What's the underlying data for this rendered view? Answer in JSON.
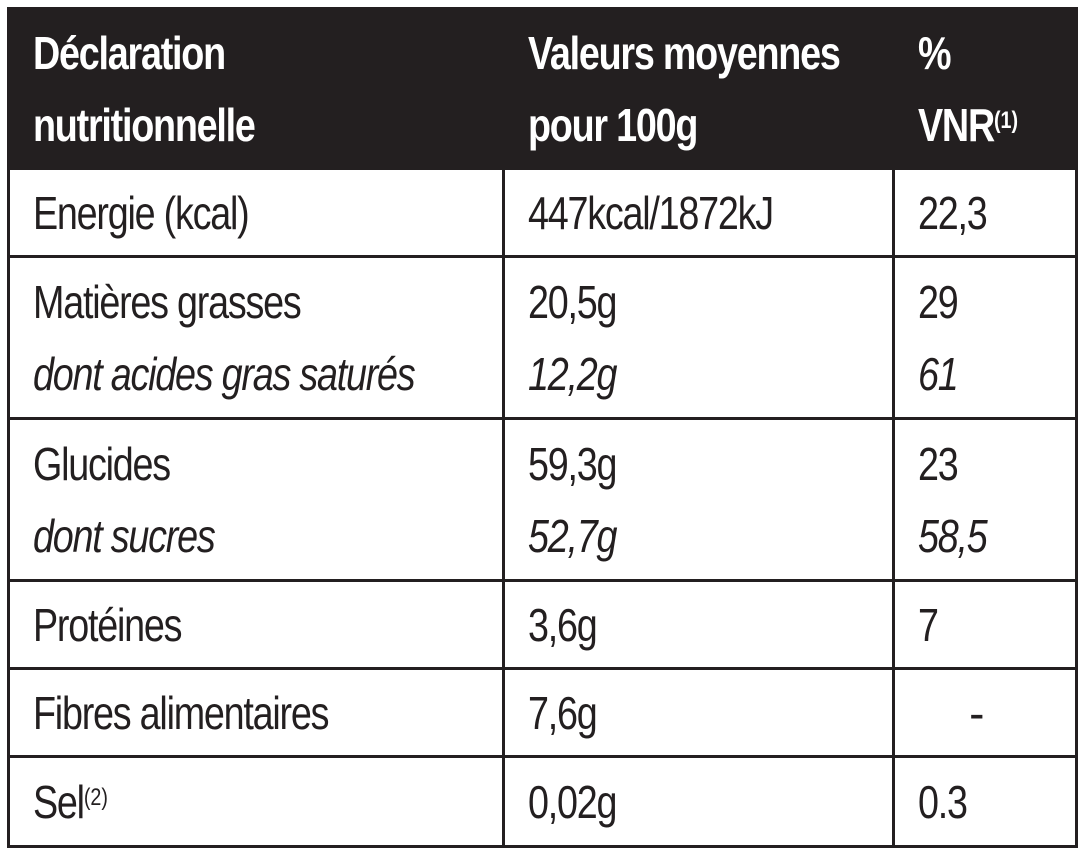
{
  "header": {
    "col1_line1": "Déclaration",
    "col1_line2": "nutritionnelle",
    "col2_line1": "Valeurs moyennes",
    "col2_line2": "pour 100g",
    "col3_line1": "%",
    "col3_line2": "VNR",
    "col3_sup": "(1)"
  },
  "rows": [
    {
      "label": "Energie (kcal)",
      "value": "447kcal/1872kJ",
      "vnr": "22,3"
    },
    {
      "label": "Matières grasses",
      "value": "20,5g",
      "vnr": "29",
      "sub_label": "dont acides gras saturés",
      "sub_value": "12,2g",
      "sub_vnr": "61"
    },
    {
      "label": "Glucides",
      "value": "59,3g",
      "vnr": "23",
      "sub_label": "dont sucres",
      "sub_value": "52,7g",
      "sub_vnr": "58,5"
    },
    {
      "label": "Protéines",
      "value": "3,6g",
      "vnr": "7"
    },
    {
      "label": "Fibres alimentaires",
      "value": "7,6g",
      "vnr": "-"
    },
    {
      "label": "Sel",
      "label_sup": "(2)",
      "value": "0,02g",
      "vnr": "0.3"
    }
  ]
}
